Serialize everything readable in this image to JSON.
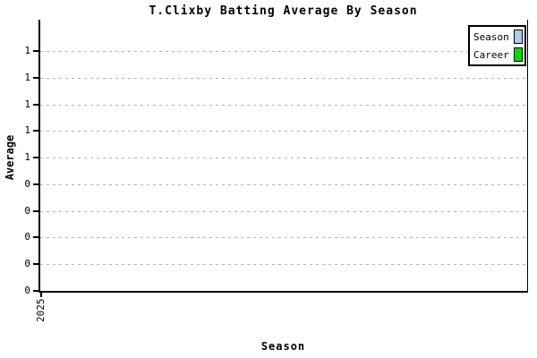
{
  "title": "T.Clixby Batting Average By Season",
  "y_axis": {
    "label": "Average",
    "tick_labels_top_to_bottom": [
      "1",
      "1",
      "1",
      "1",
      "1",
      "0",
      "0",
      "0",
      "0",
      "0"
    ]
  },
  "x_axis": {
    "label": "Season",
    "tick_labels": [
      "2025"
    ]
  },
  "legend": {
    "items": [
      {
        "label": "Season",
        "color": "#A8CEF0"
      },
      {
        "label": "Career",
        "color": "#00DD00"
      }
    ]
  },
  "colors": {
    "background": "#FFFFFF",
    "axis": "#000000",
    "gridline": "#B4B4B4",
    "text": "#000000"
  },
  "chart_data": {
    "type": "bar",
    "title": "T.Clixby Batting Average By Season",
    "xlabel": "Season",
    "ylabel": "Average",
    "categories": [
      "2025"
    ],
    "series": [
      {
        "name": "Season",
        "color": "#A8CEF0",
        "values": [
          0
        ]
      },
      {
        "name": "Career",
        "color": "#00DD00",
        "values": [
          0
        ]
      }
    ],
    "ylim": [
      0,
      1.0
    ],
    "ytick_step": 0.1,
    "ytick_labels_shown_bottom_to_top": [
      "0",
      "0",
      "0",
      "0",
      "0",
      "1",
      "1",
      "1",
      "1",
      "1"
    ],
    "grid": "horizontal dashed light-gray lines at each y tick",
    "legend_position": "top-right",
    "plot_area_empty": true,
    "x_tick_label_rotation_deg": 90,
    "notes": "No bars are rendered in the plot area; single season category 2025 with no visible values."
  }
}
